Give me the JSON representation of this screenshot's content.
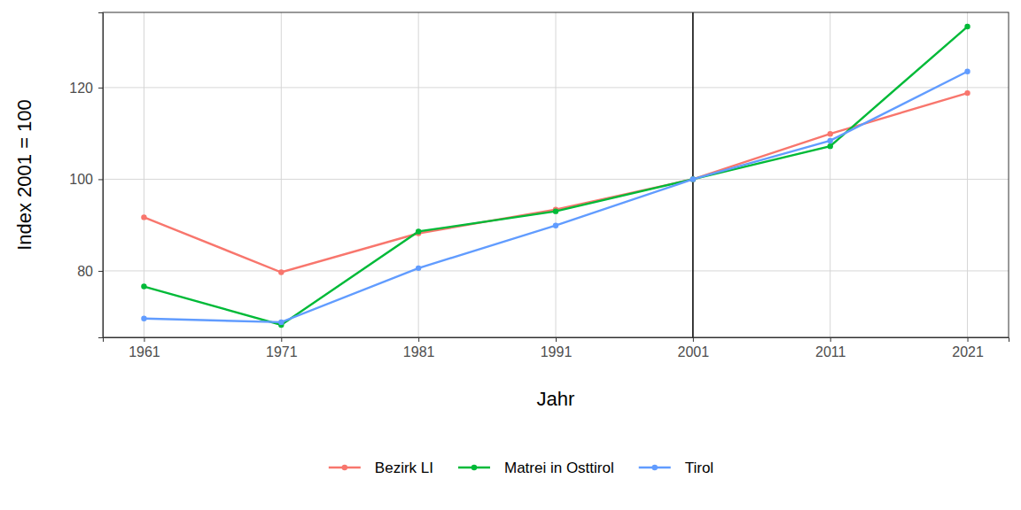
{
  "chart_data": {
    "type": "line",
    "x_label": "Jahr",
    "y_label": "Index 2001 = 100",
    "x": [
      1961,
      1971,
      1981,
      1991,
      2001,
      2011,
      2021
    ],
    "series": [
      {
        "name": "Bezirk LI",
        "color": "#F8766D",
        "values": [
          91.7,
          79.7,
          88.2,
          93.4,
          100,
          109.9,
          118.8
        ]
      },
      {
        "name": "Matrei in Osttirol",
        "color": "#00BA38",
        "values": [
          76.6,
          68.2,
          88.6,
          93.0,
          100,
          107.2,
          133.3
        ]
      },
      {
        "name": "Tirol",
        "color": "#619CFF",
        "values": [
          69.6,
          68.8,
          80.6,
          89.9,
          100,
          108.4,
          123.5
        ]
      }
    ],
    "xlim": [
      1958,
      2024
    ],
    "ylim": [
      65.5,
      136.4
    ],
    "xticks": [
      1961,
      1971,
      1981,
      1991,
      2001,
      2011,
      2021
    ],
    "yticks": [
      80,
      100,
      120
    ],
    "reference_line_x": 2001,
    "grid": true,
    "legend": "bottom",
    "marker": "circle",
    "line_style": "solid"
  }
}
